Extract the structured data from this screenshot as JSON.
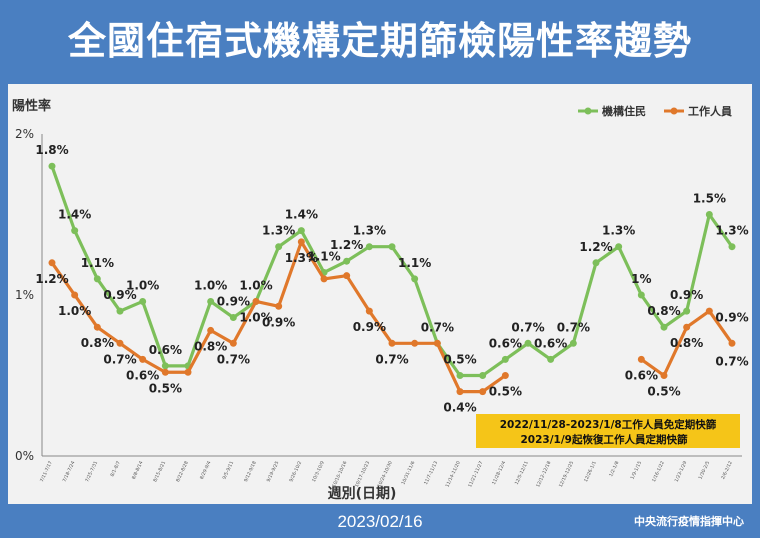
{
  "title": "全國住宿式機構定期篩檢陽性率趨勢",
  "footer": {
    "date": "2023/02/16",
    "org": "中央流行疫情指揮中心"
  },
  "note": {
    "line1": "2022/11/28-2023/1/8工作人員免定期快篩",
    "line2": "2023/1/9起恢復工作人員定期快篩"
  },
  "colors": {
    "background": "#4a7fc1",
    "panel": "#f2f2f2",
    "residents": "#7dbf5a",
    "staff": "#e0782b",
    "note_bg": "#f5c518"
  },
  "chart_data": {
    "type": "line",
    "ylabel": "陽性率",
    "xlabel": "週別(日期)",
    "ylim": [
      0,
      2
    ],
    "yticks": [
      "0%",
      "1%",
      "2%"
    ],
    "legend_position": "top-right",
    "categories": [
      "7/11-7/17",
      "7/18-7/24",
      "7/25-7/31",
      "8/1-8/7",
      "8/8-8/14",
      "8/15-8/21",
      "8/22-8/28",
      "8/29-9/4",
      "9/5-9/11",
      "9/12-9/18",
      "9/19-9/25",
      "9/26-10/2",
      "10/3-10/9",
      "10/10-10/16",
      "10/17-10/23",
      "10/24-10/30",
      "10/31-11/6",
      "11/7-11/13",
      "11/14-11/20",
      "11/21-11/27",
      "11/28-12/4",
      "12/5-12/11",
      "12/12-12/18",
      "12/19-12/25",
      "12/26-1/1",
      "1/2-1/8",
      "1/9-1/15",
      "1/16-1/22",
      "1/23-1/29",
      "1/30-2/5",
      "2/6-2/12"
    ],
    "series": [
      {
        "name": "機構住民",
        "color": "#7dbf5a",
        "values": [
          1.8,
          1.4,
          1.1,
          0.9,
          0.96,
          0.56,
          0.56,
          0.96,
          0.86,
          0.96,
          1.3,
          1.4,
          1.14,
          1.21,
          1.3,
          1.3,
          1.1,
          0.7,
          0.5,
          0.5,
          0.6,
          0.7,
          0.6,
          0.7,
          1.2,
          1.3,
          1.0,
          0.8,
          0.9,
          1.5,
          1.3
        ],
        "labels": [
          "1.8%",
          "1.4%",
          "1.1%",
          "0.9%",
          "1.0%",
          "0.6%",
          "",
          "1.0%",
          "0.9%",
          "1.0%",
          "1.3%",
          "1.4%",
          "1.1%",
          "1.2%",
          "1.3%",
          "",
          "1.1%",
          "0.7%",
          "0.5%",
          "",
          "0.6%",
          "0.7%",
          "0.6%",
          "0.7%",
          "1.2%",
          "1.3%",
          "1%",
          "0.8%",
          "0.9%",
          "1.5%",
          "1.3%"
        ]
      },
      {
        "name": "工作人員",
        "color": "#e0782b",
        "values": [
          1.2,
          1.0,
          0.8,
          0.7,
          0.6,
          0.52,
          0.52,
          0.78,
          0.7,
          0.96,
          0.93,
          1.33,
          1.1,
          1.12,
          0.9,
          0.7,
          0.7,
          0.7,
          0.4,
          0.4,
          0.5,
          null,
          null,
          null,
          null,
          null,
          0.6,
          0.5,
          0.8,
          0.9,
          0.7
        ],
        "labels": [
          "1.2%",
          "1.0%",
          "0.8%",
          "0.7%",
          "0.6%",
          "0.5%",
          "",
          "0.8%",
          "0.7%",
          "1.0%",
          "0.9%",
          "1.3%",
          "",
          "",
          "0.9%",
          "0.7%",
          "",
          "",
          "0.4%",
          "",
          "0.5%",
          "",
          "",
          "",
          "",
          "",
          "0.6%",
          "0.5%",
          "0.8%",
          "",
          "0.9%|0.7%"
        ]
      }
    ]
  }
}
